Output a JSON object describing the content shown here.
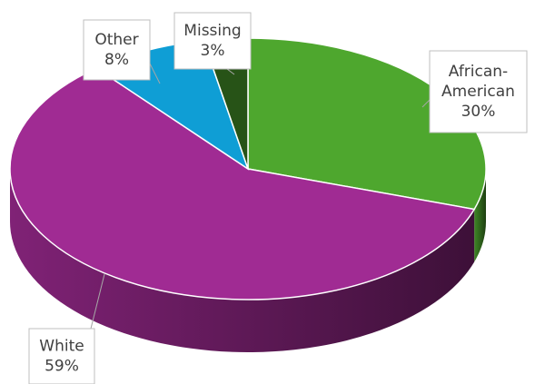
{
  "chart_data": {
    "type": "pie",
    "categories": [
      "African-American",
      "White",
      "Other",
      "Missing"
    ],
    "values": [
      30,
      59,
      8,
      3
    ],
    "value_labels": [
      "30%",
      "59%",
      "8%",
      "3%"
    ],
    "colors": [
      "#4ea72e",
      "#a02b93",
      "#0f9ed5",
      "#275317"
    ]
  }
}
